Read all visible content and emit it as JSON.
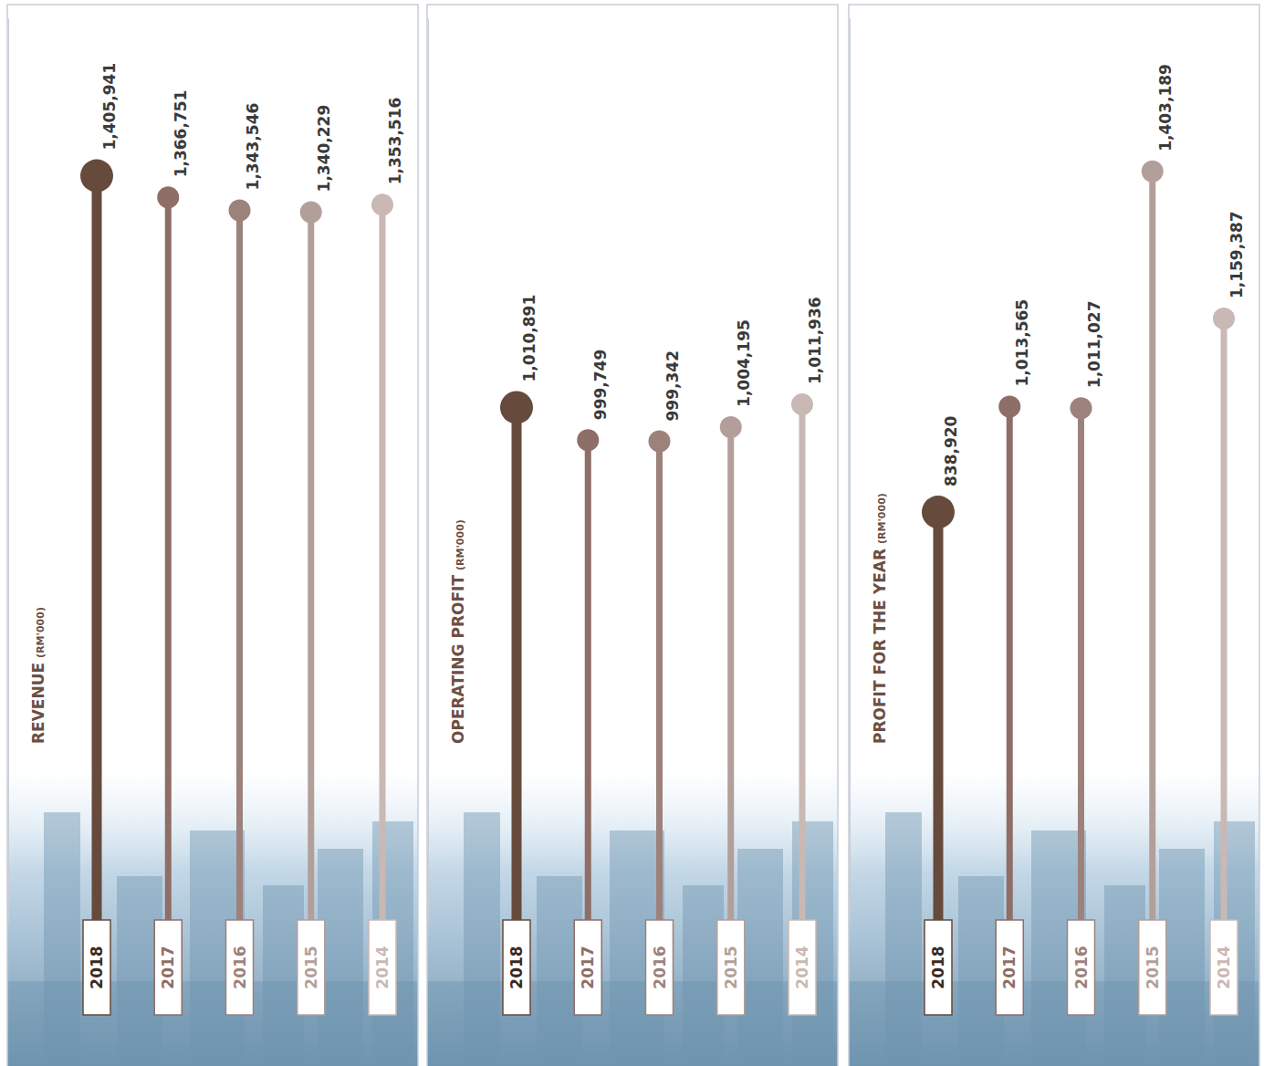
{
  "chart_data": [
    {
      "type": "lollipop",
      "title": "REVENUE",
      "subtitle": "(RM'000)",
      "categories": [
        "2018",
        "2017",
        "2016",
        "2015",
        "2014"
      ],
      "values": [
        1405941,
        1366751,
        1343546,
        1340229,
        1353516
      ],
      "value_labels": [
        "1,405,941",
        "1,366,751",
        "1,343,546",
        "1,340,229",
        "1,353,516"
      ],
      "colors": [
        "#664a3c",
        "#8e6e66",
        "#9c827b",
        "#b39f99",
        "#c9b8b3"
      ],
      "ylim": [
        60000,
        1690000
      ],
      "tick_labels": false,
      "data_labels": true
    },
    {
      "type": "lollipop",
      "title": "OPERATING PROFIT",
      "subtitle": "(RM'000)",
      "categories": [
        "2018",
        "2017",
        "2016",
        "2015",
        "2014"
      ],
      "values": [
        1010891,
        999749,
        999342,
        1004195,
        1011936
      ],
      "value_labels": [
        "1,010,891",
        "999,749",
        "999,342",
        "1,004,195",
        "1,011,936"
      ],
      "colors": [
        "#664a3c",
        "#8e6e66",
        "#9c827b",
        "#b39f99",
        "#c9b8b3"
      ],
      "ylim": [
        835000,
        1144000
      ],
      "tick_labels": false,
      "data_labels": true
    },
    {
      "type": "lollipop",
      "title": "PROFIT FOR THE YEAR",
      "subtitle": "(RM'000)",
      "categories": [
        "2018",
        "2017",
        "2016",
        "2015",
        "2014"
      ],
      "values": [
        838920,
        1013565,
        1011027,
        1403189,
        1159387
      ],
      "value_labels": [
        "838,920",
        "1,013,565",
        "1,011,027",
        "1,403,189",
        "1,159,387"
      ],
      "colors": [
        "#664a3c",
        "#8e6e66",
        "#9c827b",
        "#b39f99",
        "#c9b8b3"
      ],
      "ylim": [
        160000,
        1657000
      ],
      "tick_labels": false,
      "data_labels": true
    }
  ]
}
